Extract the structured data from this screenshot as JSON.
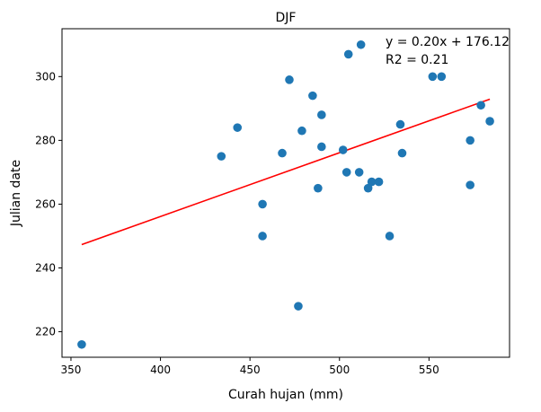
{
  "chart_data": {
    "type": "scatter",
    "title": "DJF",
    "xlabel": "Curah hujan (mm)",
    "ylabel": "Julian date",
    "xlim": [
      345,
      595
    ],
    "ylim": [
      212,
      315
    ],
    "xticks": [
      350,
      400,
      450,
      500,
      550
    ],
    "yticks": [
      220,
      240,
      260,
      280,
      300
    ],
    "grid": false,
    "colors": {
      "points": "#1f77b4",
      "fit_line": "#ff0000",
      "axes": "#000000"
    },
    "points": [
      {
        "x": 356,
        "y": 216
      },
      {
        "x": 434,
        "y": 275
      },
      {
        "x": 443,
        "y": 284
      },
      {
        "x": 457,
        "y": 260
      },
      {
        "x": 457,
        "y": 250
      },
      {
        "x": 468,
        "y": 276
      },
      {
        "x": 472,
        "y": 299
      },
      {
        "x": 477,
        "y": 228
      },
      {
        "x": 479,
        "y": 283
      },
      {
        "x": 485,
        "y": 294
      },
      {
        "x": 488,
        "y": 265
      },
      {
        "x": 490,
        "y": 288
      },
      {
        "x": 490,
        "y": 278
      },
      {
        "x": 502,
        "y": 277
      },
      {
        "x": 504,
        "y": 270
      },
      {
        "x": 505,
        "y": 307
      },
      {
        "x": 511,
        "y": 270
      },
      {
        "x": 512,
        "y": 310
      },
      {
        "x": 516,
        "y": 265
      },
      {
        "x": 518,
        "y": 267
      },
      {
        "x": 522,
        "y": 267
      },
      {
        "x": 528,
        "y": 250
      },
      {
        "x": 534,
        "y": 285
      },
      {
        "x": 535,
        "y": 276
      },
      {
        "x": 552,
        "y": 300
      },
      {
        "x": 557,
        "y": 300
      },
      {
        "x": 573,
        "y": 280
      },
      {
        "x": 573,
        "y": 266
      },
      {
        "x": 579,
        "y": 291
      },
      {
        "x": 584,
        "y": 286
      }
    ],
    "fit_line": {
      "slope": 0.2,
      "intercept": 176.12,
      "x_range": [
        356,
        584
      ]
    },
    "annotations": [
      "y = 0.20x + 176.12",
      "R2 = 0.21"
    ]
  }
}
